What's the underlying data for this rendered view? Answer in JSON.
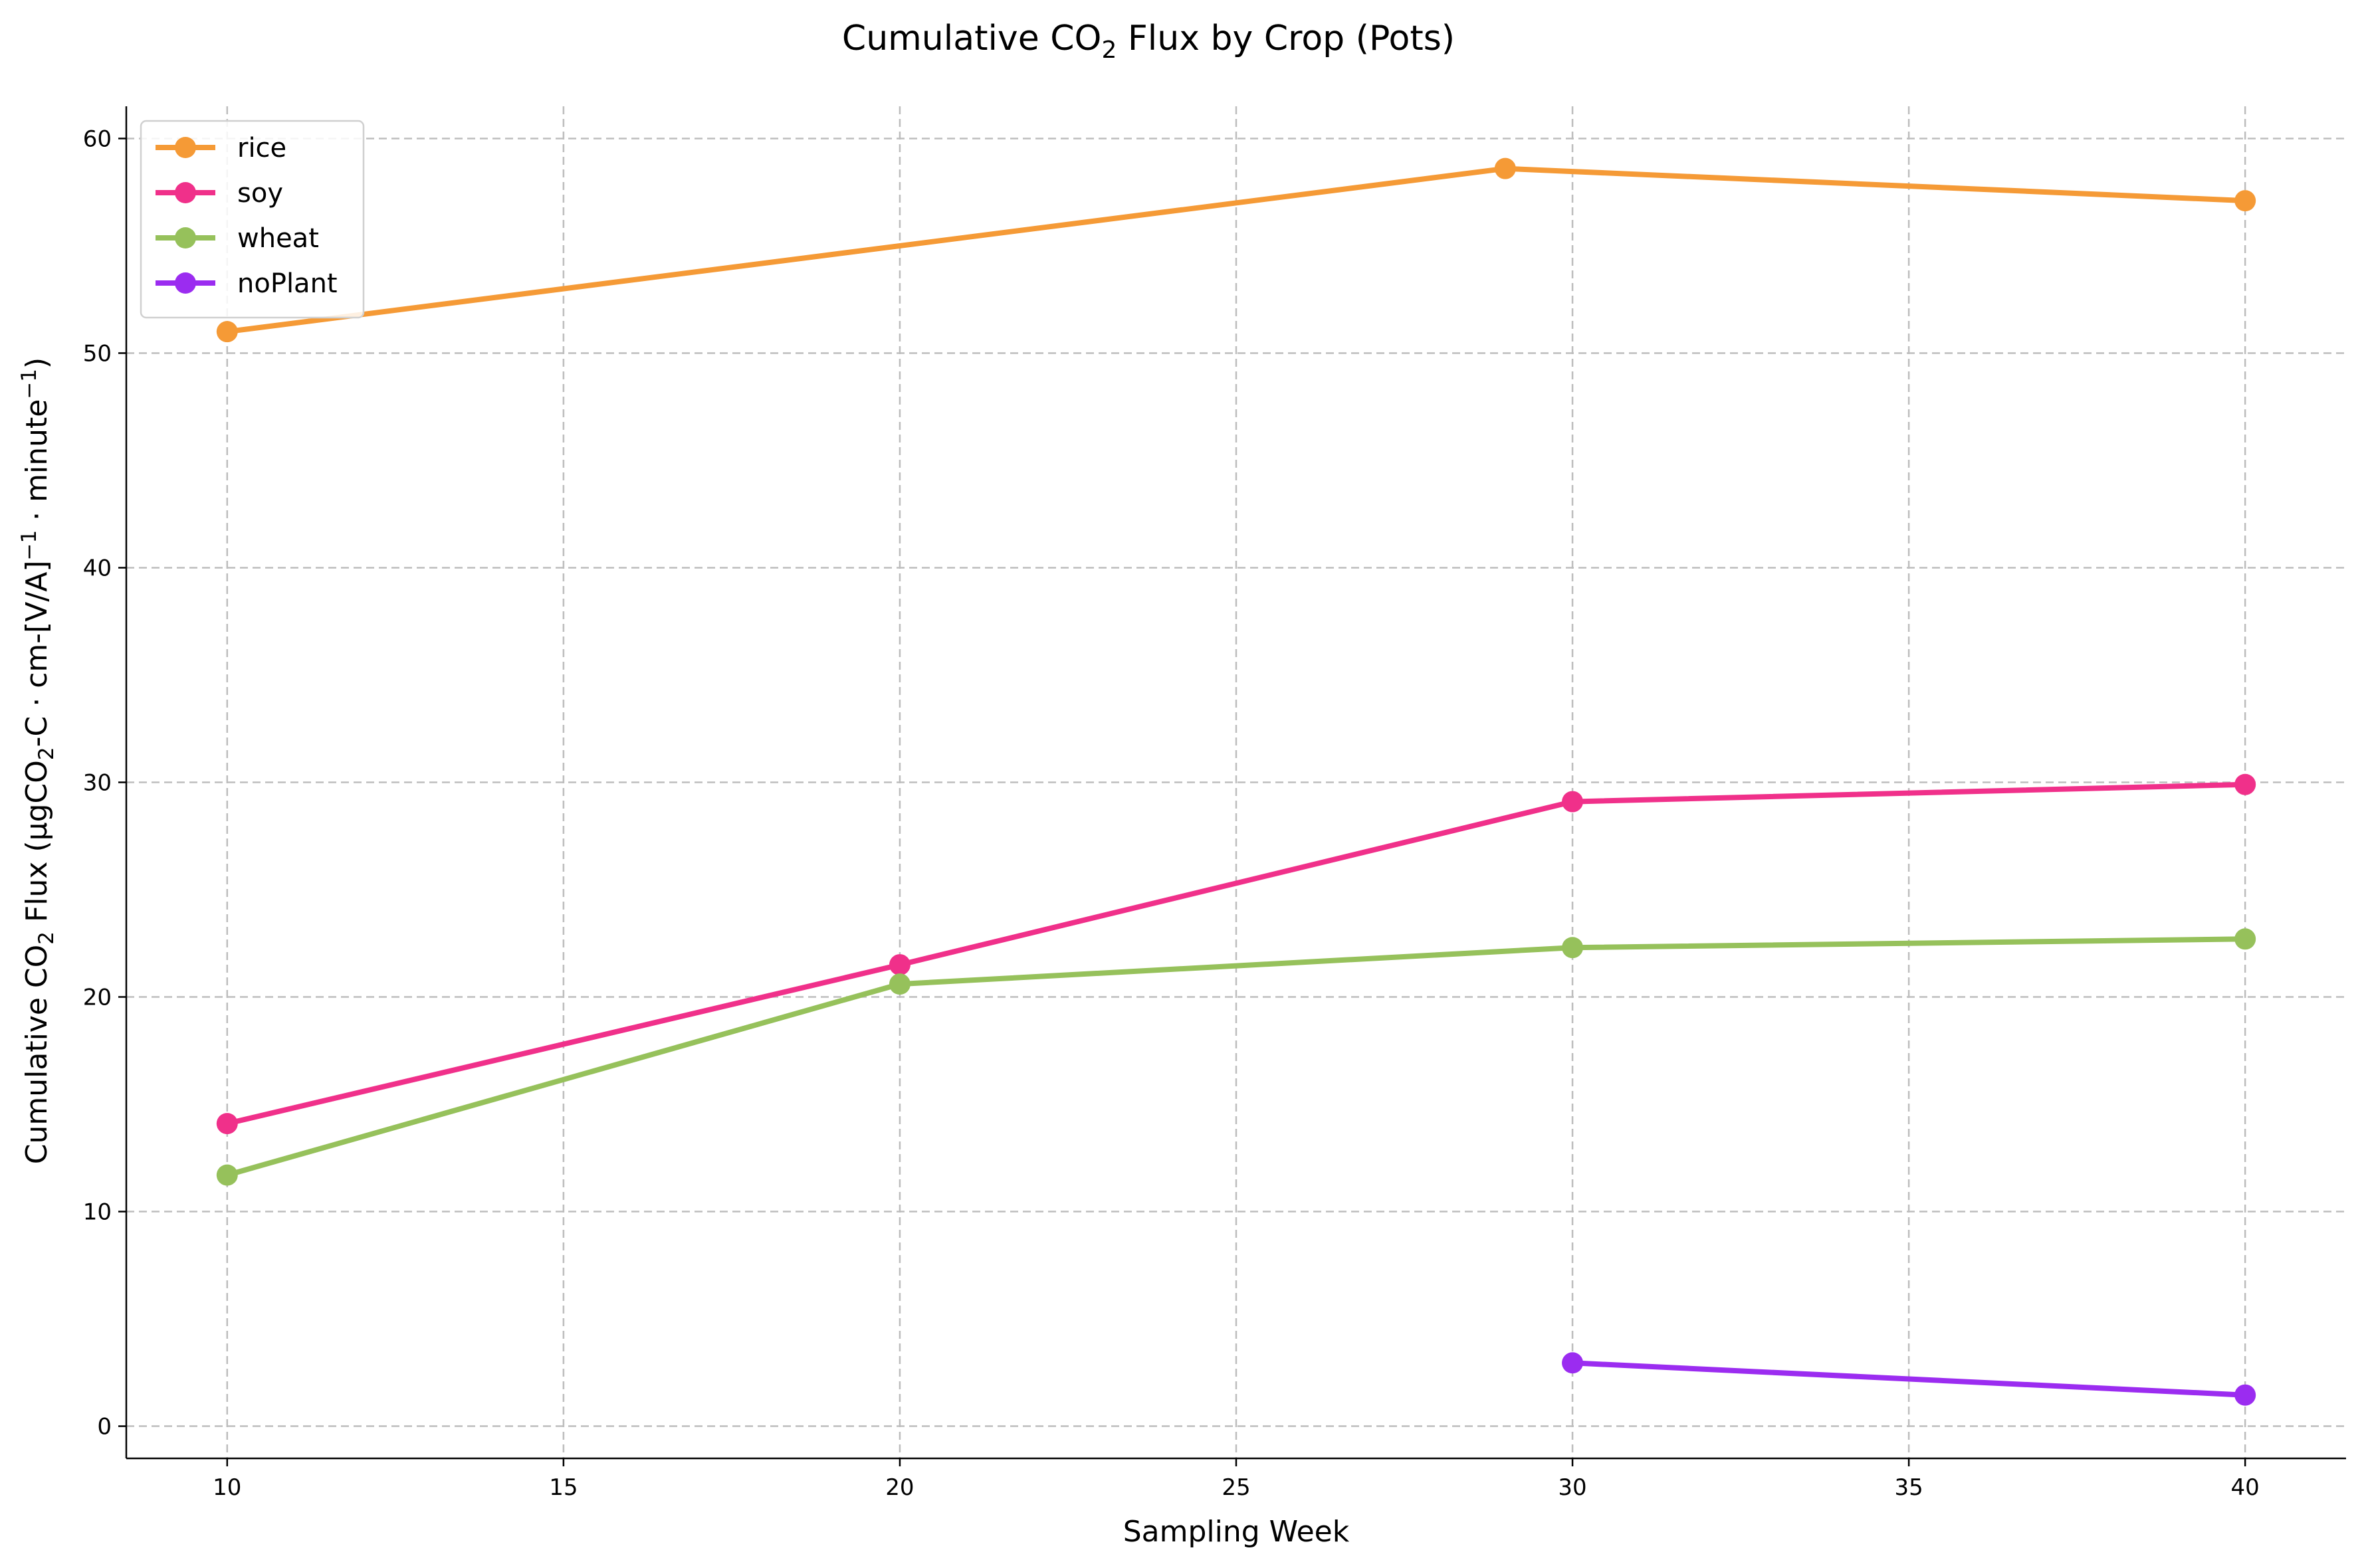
{
  "chart_data": {
    "type": "line",
    "title": "Cumulative CO",
    "title_sub": "2",
    "title_tail": " Flux by Crop (Pots)",
    "xlabel": "Sampling Week",
    "ylabel_parts": {
      "a": "Cumulative CO",
      "sub1": "2",
      "b": " Flux (µgCO",
      "sub2": "2",
      "c": "-C · cm-[V/A]",
      "sup1": "−1",
      "d": " · minute",
      "sup2": "−1",
      "e": ")"
    },
    "xlim": [
      8.5,
      41.5
    ],
    "ylim": [
      -1.5,
      61.5
    ],
    "xticks": [
      10,
      15,
      20,
      25,
      30,
      35,
      40
    ],
    "yticks": [
      0,
      10,
      20,
      30,
      40,
      50,
      60
    ],
    "grid": true,
    "legend_position": "top-left",
    "series": [
      {
        "name": "rice",
        "color": "#f59a36",
        "x": [
          10,
          29,
          40
        ],
        "y": [
          51.0,
          58.6,
          57.1
        ]
      },
      {
        "name": "soy",
        "color": "#f0308a",
        "x": [
          10,
          20,
          30,
          40
        ],
        "y": [
          14.1,
          21.5,
          29.1,
          29.9
        ]
      },
      {
        "name": "wheat",
        "color": "#96c15b",
        "x": [
          10,
          20,
          30,
          40
        ],
        "y": [
          11.7,
          20.6,
          22.3,
          22.7
        ]
      },
      {
        "name": "noPlant",
        "color": "#9b2cf0",
        "x": [
          30,
          40
        ],
        "y": [
          2.95,
          1.45
        ]
      }
    ]
  }
}
